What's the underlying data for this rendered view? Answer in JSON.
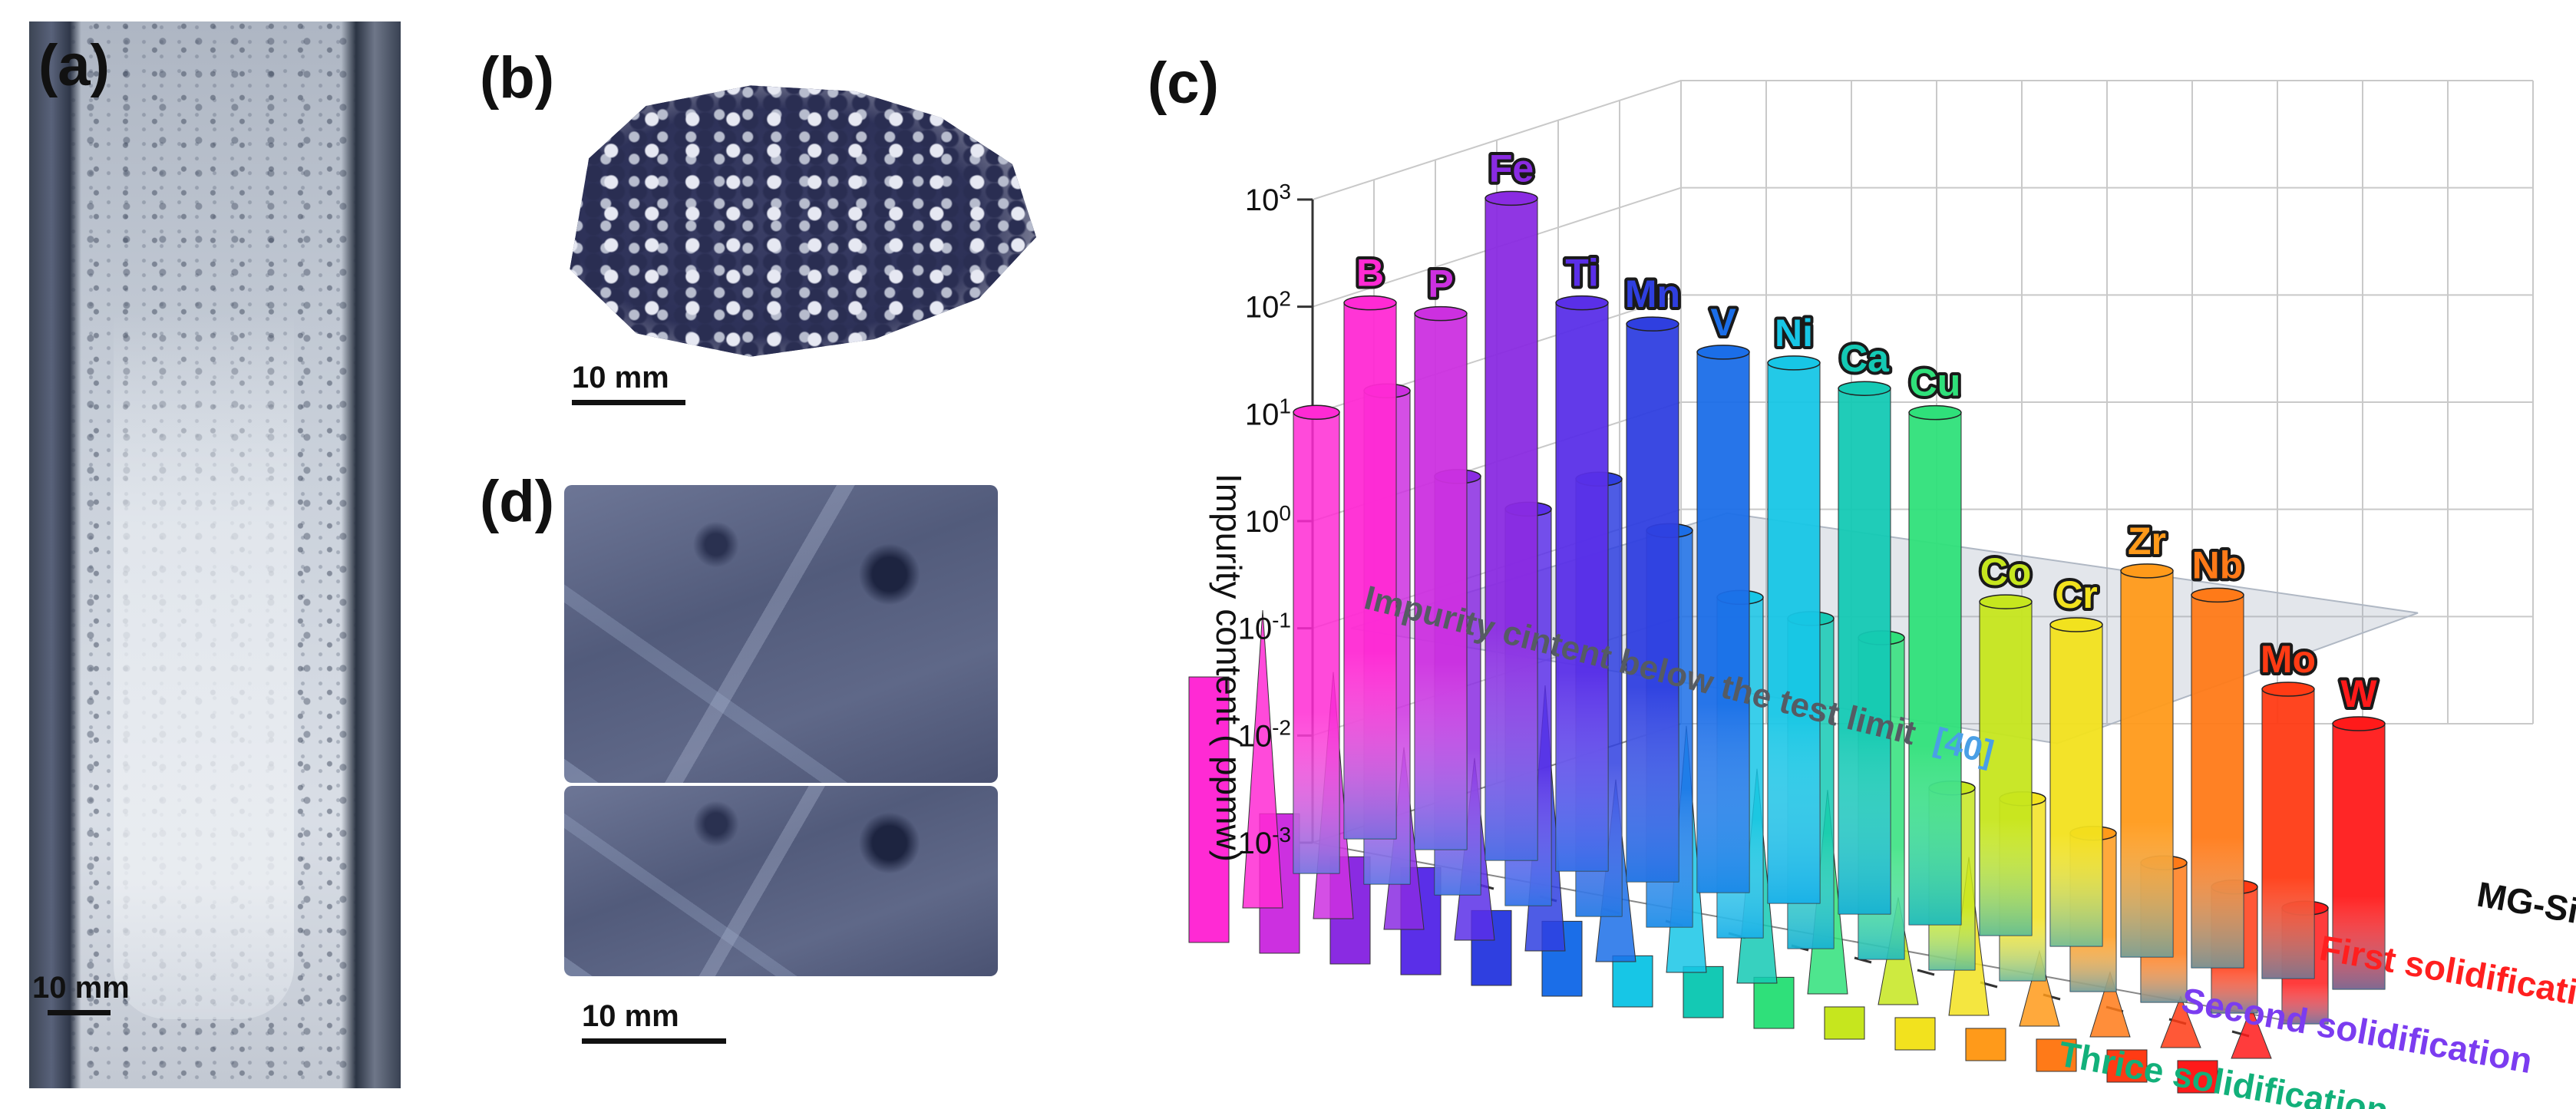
{
  "panels": {
    "a": {
      "label": "(a)",
      "scale": "10 mm"
    },
    "b": {
      "label": "(b)",
      "scale": "10 mm"
    },
    "c": {
      "label": "(c)"
    },
    "d": {
      "label": "(d)",
      "scale": "10 mm"
    }
  },
  "chart_data": {
    "type": "bar",
    "projection": "3d",
    "ylabel": "Impurity content ( ppmw)",
    "yscale": "log",
    "ylim": [
      0.001,
      1000
    ],
    "ytick_labels": [
      {
        "base": "10",
        "exp": "-3"
      },
      {
        "base": "10",
        "exp": "-2"
      },
      {
        "base": "10",
        "exp": "-1"
      },
      {
        "base": "10",
        "exp": "0"
      },
      {
        "base": "10",
        "exp": "1"
      },
      {
        "base": "10",
        "exp": "2"
      },
      {
        "base": "10",
        "exp": "3"
      }
    ],
    "categories": [
      "B",
      "P",
      "Fe",
      "Ti",
      "Mn",
      "V",
      "Ni",
      "Ca",
      "Cu",
      "Co",
      "Cr",
      "Zr",
      "Nb",
      "Mo",
      "W"
    ],
    "category_colors": [
      "#ff2ad4",
      "#cc30e0",
      "#8a2be2",
      "#5a2fe8",
      "#2f3fe0",
      "#1b6ee8",
      "#17c6e6",
      "#14c9b4",
      "#2fe07a",
      "#c6e61e",
      "#f2e21e",
      "#ff9a1a",
      "#ff7a18",
      "#ff3b14",
      "#ff1a1a"
    ],
    "series": [
      {
        "name": "MG-Si",
        "color": "#111111",
        "values": [
          100,
          100,
          1500,
          200,
          160,
          110,
          110,
          80,
          60,
          1.3,
          1.0,
          4,
          3,
          0.5,
          0.3
        ]
      },
      {
        "name": "First solidification",
        "color": "#ff1f1f",
        "values": [
          20,
          40,
          8,
          5,
          12,
          5,
          1.5,
          1.2,
          1.0,
          0.05,
          0.05,
          0.03,
          0.02,
          0.015,
          0.012
        ]
      },
      {
        "name": "Second solidification",
        "color": "#7b3cf0",
        "values": [
          0.6,
          0.2,
          0.05,
          0.05,
          0.3,
          0.05,
          0.2,
          0.1,
          0.08,
          0.01,
          0.03,
          0.005,
          0.004,
          0.003,
          0.003
        ]
      },
      {
        "name": "Thrice solidification",
        "color": "#12b07a",
        "values": [
          0.3,
          0.02,
          0.01,
          0.01,
          0.005,
          0.005,
          0.003,
          0.003,
          0.003,
          0.002,
          0.002,
          0.002,
          0.002,
          0.002,
          0.002
        ]
      }
    ],
    "annotation": "Impurity cintent below the test limit",
    "annotation_ref": "[40]",
    "grid": true
  }
}
